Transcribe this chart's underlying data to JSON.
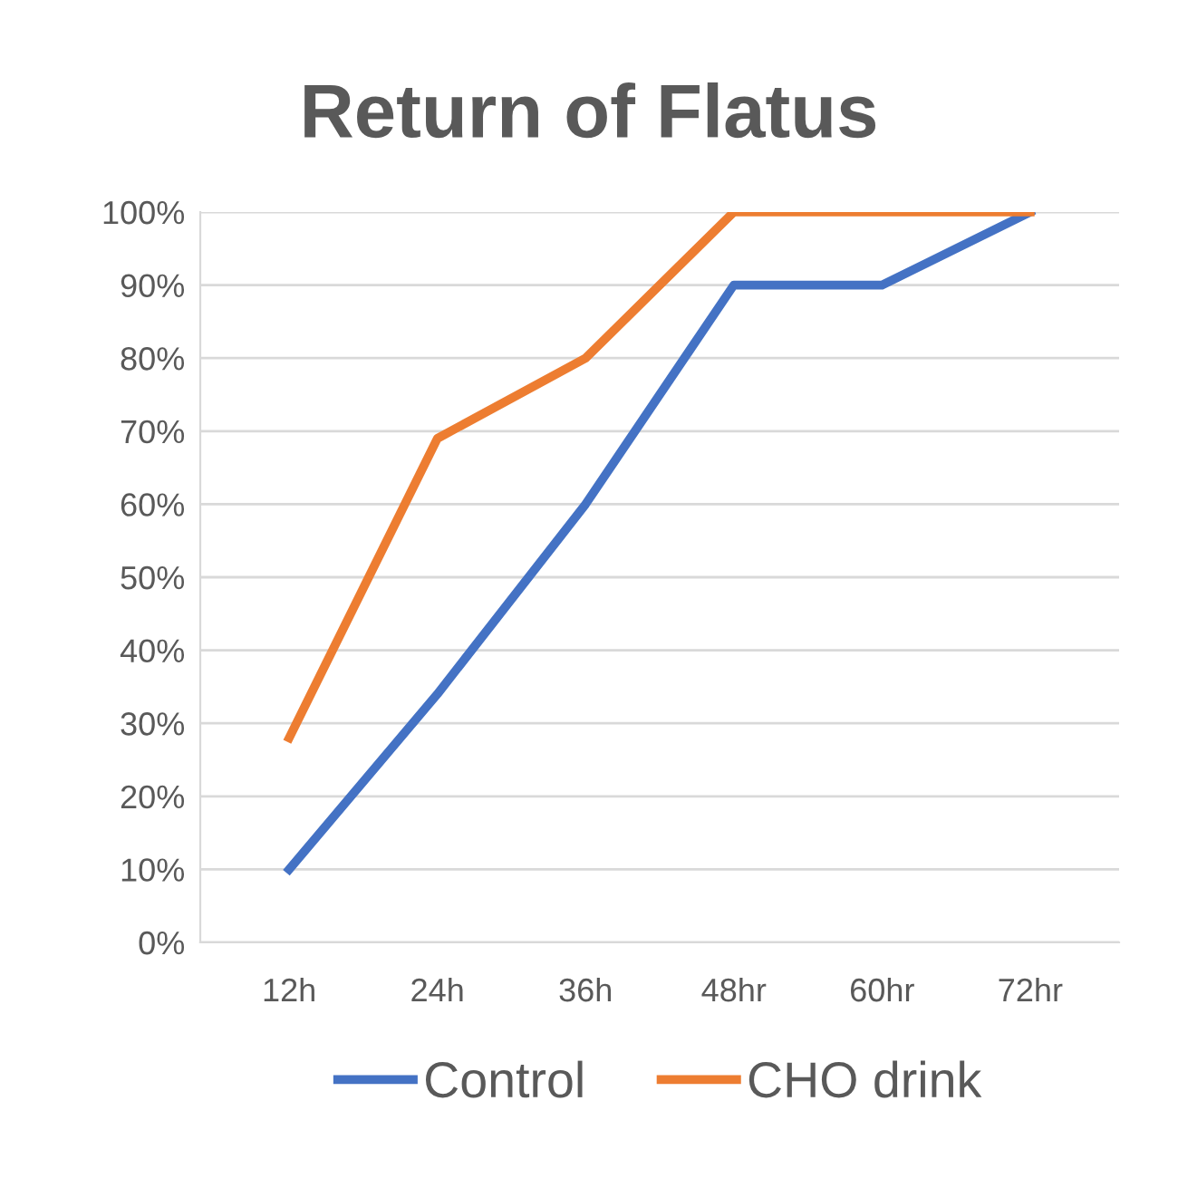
{
  "chart_data": {
    "type": "line",
    "title": "Return of Flatus",
    "categories": [
      "12h",
      "24h",
      "36h",
      "48hr",
      "60hr",
      "72hr"
    ],
    "series": [
      {
        "name": "Control",
        "color": "#4472c4",
        "values": [
          10,
          34,
          60,
          90,
          90,
          100
        ]
      },
      {
        "name": "CHO drink",
        "color": "#ed7d31",
        "values": [
          28,
          69,
          80,
          100,
          100,
          100
        ]
      }
    ],
    "ylim": [
      0,
      100
    ],
    "yticks": [
      {
        "value": 0,
        "label": "0%"
      },
      {
        "value": 10,
        "label": "10%"
      },
      {
        "value": 20,
        "label": "20%"
      },
      {
        "value": 30,
        "label": "30%"
      },
      {
        "value": 40,
        "label": "40%"
      },
      {
        "value": 50,
        "label": "50%"
      },
      {
        "value": 60,
        "label": "60%"
      },
      {
        "value": 70,
        "label": "70%"
      },
      {
        "value": 80,
        "label": "80%"
      },
      {
        "value": 90,
        "label": "90%"
      },
      {
        "value": 100,
        "label": "100%"
      }
    ],
    "grid": "y",
    "legend": "bottom",
    "marker": "none",
    "line_style": "solid"
  }
}
